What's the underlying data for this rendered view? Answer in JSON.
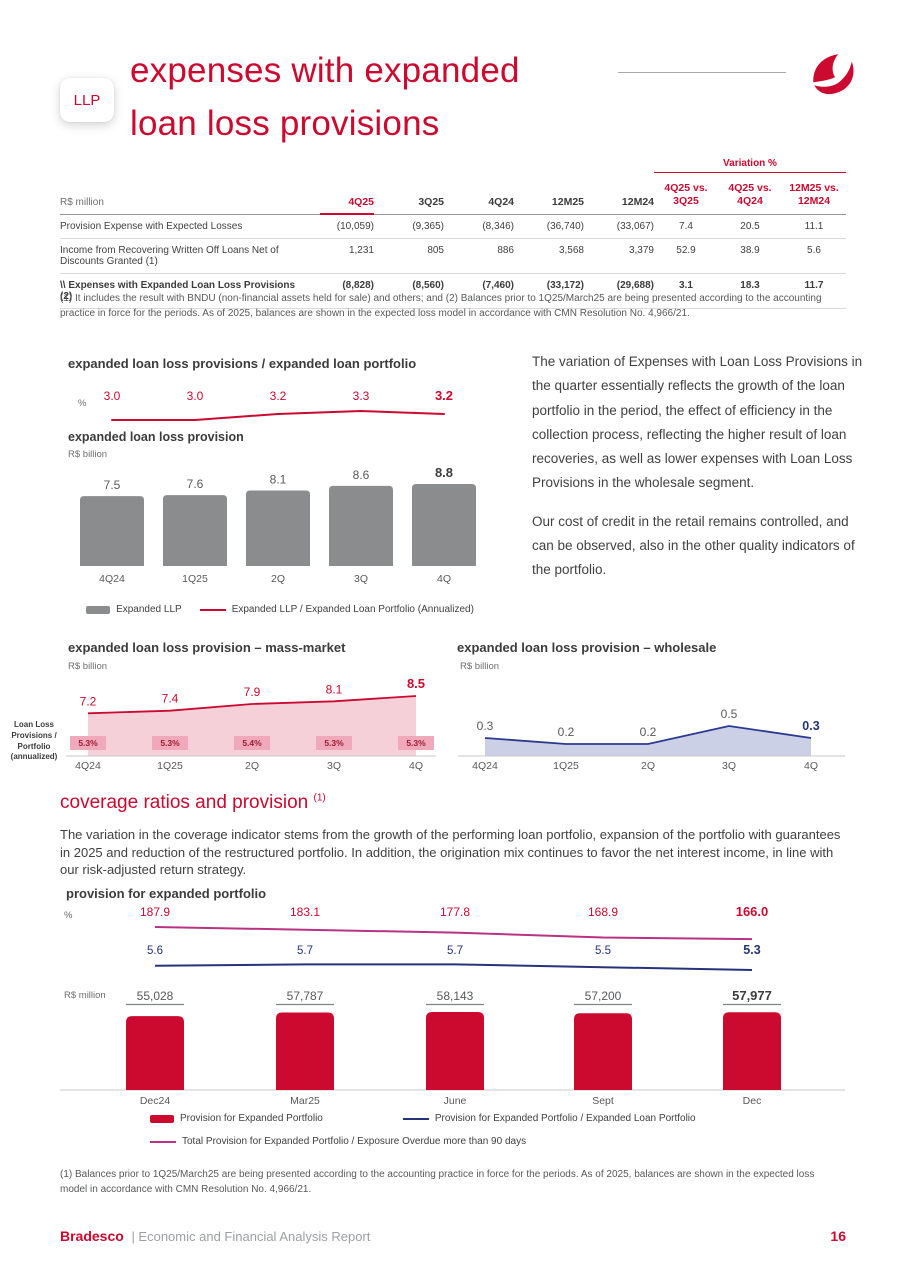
{
  "page": {
    "badge": "LLP",
    "title_line1": "expenses with expanded",
    "title_line2": "loan loss provisions",
    "footer_brand": "Bradesco",
    "footer_text": "| Economic and Financial Analysis Report",
    "page_number": "16"
  },
  "colors": {
    "brand_red": "#CC092F",
    "bar_gray": "#8A8C8E",
    "area_pink_fill": "#F5D0D9",
    "ratio_box_pink": "#EFA9BA",
    "ratio_box_text": "#9E1B32",
    "wholesale_line": "#2B3990",
    "wholesale_fill": "#CBD0E6",
    "provision_bar_red": "#CC092F",
    "portfolio_line_navy": "#26337B",
    "coverage_line_magenta": "#B93283",
    "text_dark": "#3C3C3C",
    "text_gray": "#58595B"
  },
  "table": {
    "unit": "R$ million",
    "variation_label": "Variation %",
    "columns": [
      "4Q25",
      "3Q25",
      "4Q24",
      "12M25",
      "12M24",
      "4Q25 vs.\n3Q25",
      "4Q25 vs.\n4Q24",
      "12M25 vs.\n12M24"
    ],
    "rows": [
      {
        "label": "Provision Expense with Expected Losses",
        "values": [
          "(10,059)",
          "(9,365)",
          "(8,346)",
          "(36,740)",
          "(33,067)",
          "7.4",
          "20.5",
          "11.1"
        ],
        "bold": false
      },
      {
        "label": "Income from Recovering Written Off Loans Net of Discounts Granted (1)",
        "values": [
          "1,231",
          "805",
          "886",
          "3,568",
          "3,379",
          "52.9",
          "38.9",
          "5.6"
        ],
        "bold": false
      },
      {
        "label": "\\\\ Expenses with Expanded Loan Loss Provisions (2)",
        "values": [
          "(8,828)",
          "(8,560)",
          "(7,460)",
          "(33,172)",
          "(29,688)",
          "3.1",
          "18.3",
          "11.7"
        ],
        "bold": true
      }
    ],
    "footnote": "(1) It includes the result with BNDU (non-financial assets held for sale) and others; and (2) Balances prior to 1Q25/March25 are being presented according to the accounting practice in force for the periods. As of 2025, balances are shown in the expected loss model in accordance with CMN Resolution No. 4,966/21."
  },
  "commentary": {
    "p1": "The variation of Expenses with Loan Loss Provisions in the quarter essentially reflects the growth of the loan portfolio in the period, the effect of efficiency in the collection process, reflecting the higher result of loan recoveries, as well as lower expenses with Loan Loss Provisions in the wholesale segment.",
    "p2": "Our cost of credit in the retail remains controlled, and can be observed, also in the other quality indicators of the portfolio."
  },
  "coverage": {
    "heading": "coverage ratios and provision ",
    "heading_sup": "(1)",
    "paragraph": "The variation in the coverage indicator stems from the growth of the performing loan portfolio, expansion of the portfolio with guarantees in 2025 and reduction of the restructured portfolio. In addition, the origination mix continues to favor the net interest income, in line with our risk-adjusted return strategy.",
    "footnote": "(1) Balances prior to 1Q25/March25 are being presented according to the accounting practice in force for the periods. As of 2025, balances are shown in the expected loss model in accordance with CMN Resolution No. 4,966/21."
  },
  "legends": {
    "expanded_llp": [
      {
        "label": "Expanded LLP",
        "type": "bar",
        "color": "#8A8C8E"
      },
      {
        "label": "Expanded LLP / Expanded Loan Portfolio (Annualized)",
        "type": "line",
        "color": "#CC092F"
      }
    ],
    "provision": [
      {
        "label": "Provision for Expanded Portfolio",
        "type": "bar",
        "color": "#CC092F"
      },
      {
        "label": "Provision for Expanded Portfolio / Expanded Loan Portfolio",
        "type": "line",
        "color": "#26337B"
      },
      {
        "label": "Total Provision for Expanded Portfolio / Exposure Overdue more than 90 days",
        "type": "line",
        "color": "#B93283"
      }
    ]
  },
  "chart_data": [
    {
      "id": "expanded_llp",
      "type": "bar",
      "title": "expanded loan loss provisions / expanded loan portfolio",
      "subtitle": "expanded loan loss provision",
      "line_unit": "%",
      "bar_unit": "R$ billion",
      "categories": [
        "4Q24",
        "1Q25",
        "2Q",
        "3Q",
        "4Q"
      ],
      "series": [
        {
          "name": "Expanded LLP",
          "type": "bar",
          "values": [
            7.5,
            7.6,
            8.1,
            8.6,
            8.8
          ]
        },
        {
          "name": "Expanded LLP / Expanded Loan Portfolio (Annualized)",
          "type": "line",
          "values": [
            3.0,
            3.0,
            3.2,
            3.3,
            3.2
          ]
        }
      ]
    },
    {
      "id": "mass_market",
      "type": "area",
      "title": "expanded loan loss provision – mass-market",
      "unit": "R$ billion",
      "side_label": "Loan Loss Provisions / Portfolio (annualized)",
      "categories": [
        "4Q24",
        "1Q25",
        "2Q",
        "3Q",
        "4Q"
      ],
      "values": [
        7.2,
        7.4,
        7.9,
        8.1,
        8.5
      ],
      "ratio_labels": [
        "5.3%",
        "5.3%",
        "5.4%",
        "5.3%",
        "5.3%"
      ]
    },
    {
      "id": "wholesale",
      "type": "area",
      "title": "expanded loan loss provision – wholesale",
      "unit": "R$ billion",
      "categories": [
        "4Q24",
        "1Q25",
        "2Q",
        "3Q",
        "4Q"
      ],
      "values": [
        0.3,
        0.2,
        0.2,
        0.5,
        0.3
      ]
    },
    {
      "id": "provision_expanded_portfolio",
      "type": "bar",
      "title": "provision for expanded portfolio",
      "pct_unit": "%",
      "bar_unit": "R$ million",
      "categories": [
        "Dec24",
        "Mar25",
        "June",
        "Sept",
        "Dec"
      ],
      "series": [
        {
          "name": "Provision for Expanded Portfolio",
          "type": "bar",
          "values": [
            55028,
            57787,
            58143,
            57200,
            57977
          ],
          "labels": [
            "55,028",
            "57,787",
            "58,143",
            "57,200",
            "57,977"
          ]
        },
        {
          "name": "Total Provision for Expanded Portfolio / Exposure Overdue more than 90 days",
          "type": "line",
          "values": [
            187.9,
            183.1,
            177.8,
            168.9,
            166.0
          ]
        },
        {
          "name": "Provision for Expanded Portfolio / Expanded Loan Portfolio",
          "type": "line",
          "values": [
            5.6,
            5.7,
            5.7,
            5.5,
            5.3
          ]
        }
      ]
    }
  ]
}
